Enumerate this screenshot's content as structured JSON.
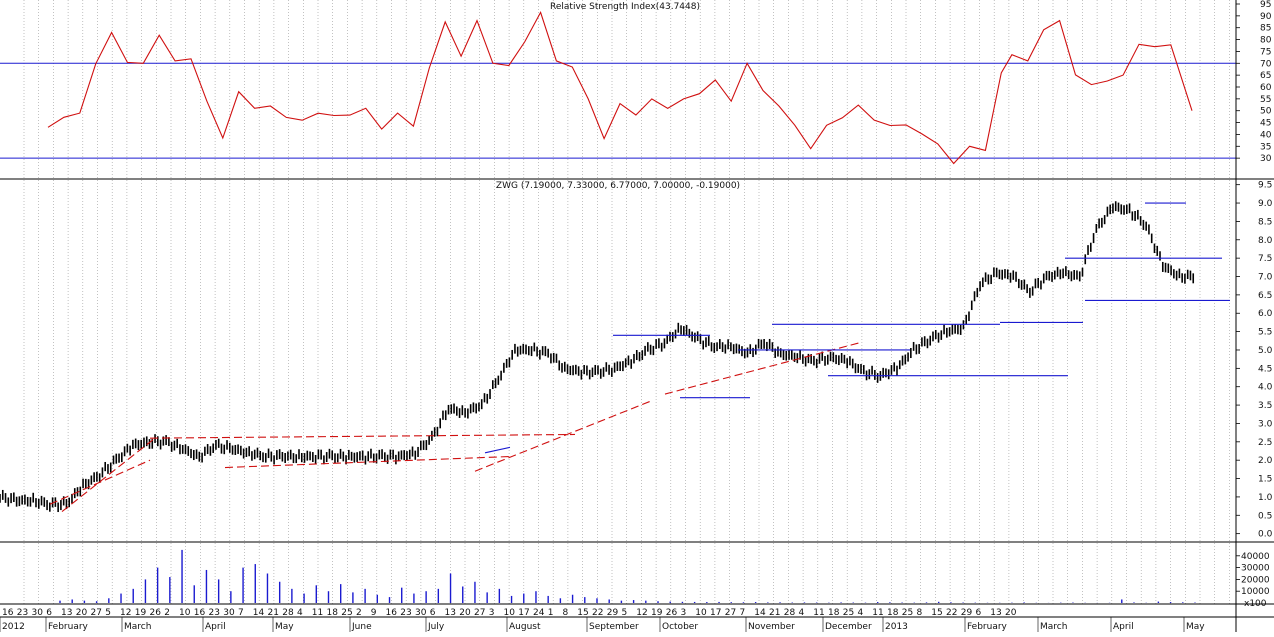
{
  "colors": {
    "rsi_line": "#d01010",
    "rsi_band": "#1a1ad0",
    "price_bars": "#000000",
    "trend_dashed": "#d01010",
    "level_lines": "#1a1ad0",
    "volume_bars": "#1a1ad0",
    "grid": "#9a9a9a"
  },
  "chart_data": [
    {
      "type": "line",
      "title": "Relative Strength Index(43.7448)",
      "ylim": [
        25,
        95
      ],
      "y_ticks": [
        "95",
        "90",
        "85",
        "80",
        "75",
        "70",
        "65",
        "60",
        "55",
        "50",
        "45",
        "40",
        "35",
        "30"
      ],
      "bands": [
        70,
        30
      ],
      "x": [
        0,
        3,
        6,
        9,
        12,
        15,
        18,
        21,
        24,
        27,
        30,
        33,
        36,
        39,
        42,
        45,
        48,
        51,
        54,
        57,
        60,
        63,
        66,
        69,
        72,
        75,
        78,
        81,
        84,
        87,
        90,
        93,
        96,
        99,
        102,
        105,
        108,
        111,
        114,
        117,
        120,
        123,
        126,
        129,
        132,
        135,
        138,
        141,
        144,
        147,
        150,
        153,
        156,
        159,
        162,
        165,
        168,
        171,
        174,
        177,
        180,
        182
      ],
      "values": [
        43,
        45,
        49,
        68,
        83,
        73,
        70,
        83,
        71,
        69,
        54,
        38,
        58,
        54,
        52,
        47,
        46,
        46,
        48,
        49,
        51,
        45,
        49,
        42,
        68,
        85,
        73,
        90,
        70,
        71,
        79,
        89,
        71,
        67,
        55,
        41,
        53,
        49,
        55,
        48,
        55,
        57,
        63,
        57,
        70,
        58,
        52,
        41,
        34,
        45,
        47,
        55,
        46,
        42,
        44,
        38,
        36,
        30,
        35,
        35,
        66,
        71
      ],
      "x_continue": [
        182,
        185,
        188,
        191,
        194,
        197,
        200,
        203,
        206,
        209,
        212,
        216
      ],
      "values_continue": [
        71,
        71,
        83,
        88,
        68,
        61,
        63,
        65,
        75,
        77,
        78,
        50
      ]
    },
    {
      "type": "bar",
      "title": "ZWG (7.19000, 7.33000, 6.77000, 7.00000, -0.19000)",
      "ylim": [
        -0.2,
        9.6
      ],
      "y_ticks": [
        "9.5",
        "9.0",
        "8.5",
        "8.0",
        "7.5",
        "7.0",
        "6.5",
        "6.0",
        "5.5",
        "5.0",
        "4.5",
        "4.0",
        "3.5",
        "3.0",
        "2.5",
        "2.0",
        "1.5",
        "1.0",
        "0.5",
        "0.0"
      ],
      "x": [
        0,
        3,
        6,
        9,
        12,
        15,
        18,
        21,
        24,
        27,
        30,
        33,
        36,
        39,
        42,
        45,
        48,
        51,
        54,
        57,
        60,
        63,
        66,
        69,
        72,
        75,
        78,
        81,
        84,
        87,
        90,
        93,
        96,
        99,
        102,
        105,
        108,
        111,
        114,
        117,
        120,
        123,
        126,
        129,
        132,
        135,
        138,
        141,
        144,
        147,
        150,
        153,
        156,
        159,
        162,
        165,
        168,
        171,
        174,
        177,
        180,
        183,
        186,
        189,
        192,
        195,
        198,
        201,
        204,
        207,
        210,
        213,
        216
      ],
      "close": [
        1.0,
        0.9,
        0.9,
        0.8,
        0.8,
        1.3,
        1.6,
        2.0,
        2.4,
        2.5,
        2.5,
        2.3,
        2.1,
        2.4,
        2.3,
        2.2,
        2.1,
        2.1,
        2.1,
        2.1,
        2.1,
        2.1,
        2.1,
        2.1,
        2.1,
        2.2,
        2.6,
        3.4,
        3.3,
        3.5,
        4.2,
        5.0,
        5.0,
        4.9,
        4.5,
        4.4,
        4.4,
        4.5,
        4.7,
        5.0,
        5.2,
        5.6,
        5.3,
        5.1,
        5.1,
        4.9,
        5.2,
        4.9,
        4.8,
        4.7,
        4.8,
        4.7,
        4.4,
        4.3,
        4.5,
        5.0,
        5.3,
        5.5,
        5.6,
        6.8,
        7.1,
        7.0,
        6.6,
        7.0,
        7.1,
        7.0,
        8.3,
        8.9,
        8.8,
        8.4,
        7.3,
        7.0,
        7.0
      ]
    },
    {
      "type": "bar",
      "title": "",
      "ylim": [
        0,
        50000
      ],
      "y_ticks": [
        "40000",
        "30000",
        "20000",
        "10000"
      ],
      "x_labels": [
        "16",
        "23",
        "30",
        "6",
        "13",
        "20",
        "27",
        "5",
        "12",
        "19",
        "26",
        "2",
        "10",
        "16",
        "23",
        "30",
        "7",
        "14",
        "21",
        "28",
        "4",
        "11",
        "18",
        "25",
        "2",
        "9",
        "16",
        "23",
        "30",
        "6",
        "13",
        "20",
        "27",
        "3",
        "10",
        "17",
        "24",
        "1",
        "8",
        "15",
        "22",
        "29",
        "5",
        "12",
        "19",
        "26",
        "3",
        "10",
        "17",
        "27",
        "7",
        "14",
        "21",
        "28",
        "4",
        "11",
        "18",
        "25",
        "4",
        "11",
        "18",
        "25",
        "8",
        "15",
        "22",
        "29",
        "6",
        "13",
        "20"
      ],
      "month_labels": [
        "2012",
        "February",
        "March",
        "April",
        "May",
        "June",
        "July",
        "August",
        "September",
        "October",
        "November",
        "December",
        "2013",
        "February",
        "March",
        "April",
        "May"
      ],
      "values": [
        2000,
        3000,
        2000,
        1500,
        4000,
        8000,
        12000,
        20000,
        30000,
        22000,
        45000,
        15000,
        28000,
        20000,
        10000,
        30000,
        33000,
        25000,
        18000,
        12000,
        8000,
        15000,
        10000,
        16000,
        9000,
        12000,
        7000,
        5000,
        13000,
        8000,
        10000,
        12000,
        25000,
        14000,
        18000,
        9000,
        12000,
        6000,
        8000,
        10000,
        6000,
        4000,
        7000,
        5000,
        4000,
        3000,
        2000,
        2500,
        2000,
        1500,
        1200,
        1000,
        900,
        800,
        900,
        700,
        600,
        800,
        500,
        600,
        400,
        500,
        400,
        300,
        500,
        400,
        300,
        800,
        600,
        400,
        300,
        500,
        1000,
        600,
        400,
        300,
        200,
        200,
        300,
        500,
        200,
        100,
        300,
        400,
        200,
        100,
        200,
        3000,
        500,
        200,
        1200,
        800,
        600,
        400
      ]
    }
  ]
}
